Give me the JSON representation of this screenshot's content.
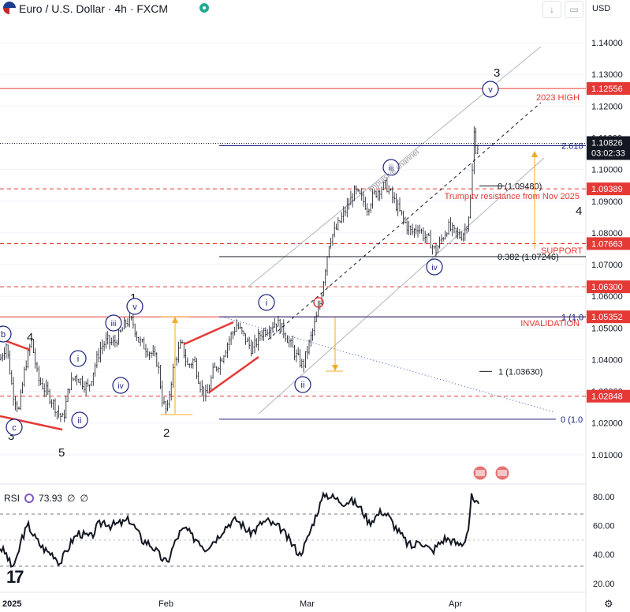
{
  "header": {
    "title": "Euro / U.S. Dollar · 4h · FXCM",
    "currency": "USD",
    "icons": [
      "eu-us-flag-icon",
      "market-open-dot-icon",
      "arrow-down-icon",
      "calendar-icon"
    ]
  },
  "chart_data": {
    "type": "candlestick",
    "symbol": "EURUSD",
    "timeframe": "4h",
    "y_ticks": [
      1.01,
      1.02,
      1.03,
      1.04,
      1.05,
      1.06,
      1.07,
      1.08,
      1.09,
      1.1,
      1.11,
      1.12,
      1.13,
      1.14
    ],
    "y_tick_labels": [
      "1.01000",
      "1.02000",
      "1.03000",
      "1.04000",
      "1.05000",
      "1.06000",
      "1.07000",
      "1.08000",
      "1.09000",
      "1.10000",
      "1.11000",
      "1.12000",
      "1.13000",
      "1.14000"
    ],
    "ylim": [
      1.001,
      1.148
    ],
    "x_labels": [
      "2025",
      "Feb",
      "Mar",
      "Apr"
    ],
    "price_path": [
      [
        0,
        1.04
      ],
      [
        8,
        1.045
      ],
      [
        16,
        1.03
      ],
      [
        24,
        1.024
      ],
      [
        32,
        1.038
      ],
      [
        40,
        1.046
      ],
      [
        48,
        1.034
      ],
      [
        56,
        1.031
      ],
      [
        64,
        1.028
      ],
      [
        72,
        1.024
      ],
      [
        80,
        1.021
      ],
      [
        88,
        1.032
      ],
      [
        96,
        1.035
      ],
      [
        104,
        1.033
      ],
      [
        112,
        1.031
      ],
      [
        120,
        1.038
      ],
      [
        128,
        1.044
      ],
      [
        136,
        1.046
      ],
      [
        144,
        1.045
      ],
      [
        152,
        1.048
      ],
      [
        160,
        1.052
      ],
      [
        168,
        1.052
      ],
      [
        176,
        1.046
      ],
      [
        184,
        1.044
      ],
      [
        192,
        1.042
      ],
      [
        200,
        1.039
      ],
      [
        206,
        1.027
      ],
      [
        212,
        1.023
      ],
      [
        216,
        1.032
      ],
      [
        222,
        1.04
      ],
      [
        230,
        1.045
      ],
      [
        238,
        1.038
      ],
      [
        246,
        1.04
      ],
      [
        254,
        1.032
      ],
      [
        262,
        1.028
      ],
      [
        270,
        1.036
      ],
      [
        280,
        1.04
      ],
      [
        290,
        1.046
      ],
      [
        300,
        1.051
      ],
      [
        310,
        1.047
      ],
      [
        320,
        1.043
      ],
      [
        330,
        1.048
      ],
      [
        340,
        1.05
      ],
      [
        350,
        1.052
      ],
      [
        360,
        1.049
      ],
      [
        368,
        1.045
      ],
      [
        376,
        1.041
      ],
      [
        384,
        1.038
      ],
      [
        392,
        1.045
      ],
      [
        400,
        1.052
      ],
      [
        406,
        1.058
      ],
      [
        412,
        1.068
      ],
      [
        418,
        1.078
      ],
      [
        426,
        1.081
      ],
      [
        434,
        1.085
      ],
      [
        442,
        1.089
      ],
      [
        450,
        1.093
      ],
      [
        458,
        1.091
      ],
      [
        466,
        1.088
      ],
      [
        474,
        1.092
      ],
      [
        482,
        1.094
      ],
      [
        490,
        1.095
      ],
      [
        498,
        1.091
      ],
      [
        506,
        1.087
      ],
      [
        514,
        1.083
      ],
      [
        522,
        1.08
      ],
      [
        530,
        1.082
      ],
      [
        538,
        1.079
      ],
      [
        546,
        1.077
      ],
      [
        552,
        1.074
      ],
      [
        560,
        1.078
      ],
      [
        568,
        1.082
      ],
      [
        576,
        1.08
      ],
      [
        584,
        1.079
      ],
      [
        590,
        1.081
      ],
      [
        594,
        1.085
      ],
      [
        598,
        1.093
      ],
      [
        601,
        1.112
      ],
      [
        604,
        1.106
      ],
      [
        607,
        1.108
      ]
    ],
    "price_lines": [
      {
        "value": 1.12556,
        "label": "1.12556",
        "color": "#e53935",
        "style": "solid"
      },
      {
        "value": 1.09389,
        "label": "1.09389",
        "color": "#e53935",
        "style": "dashed"
      },
      {
        "value": 1.07663,
        "label": "1.07663",
        "color": "#e53935",
        "style": "dashed"
      },
      {
        "value": 1.063,
        "label": "1.06300",
        "color": "#e53935",
        "style": "dashed"
      },
      {
        "value": 1.05352,
        "label": "1.05352",
        "color": "#e53935",
        "style": "solid"
      },
      {
        "value": 1.02848,
        "label": "1.02848",
        "color": "#e53935",
        "style": "dashed"
      }
    ],
    "current_price": {
      "value": 1.10826,
      "label": "1.10826",
      "countdown": "03:02:33"
    },
    "fib_levels": [
      {
        "label": "2.618",
        "value": 1.1075
      },
      {
        "label": "0 (1.09480)",
        "value": 1.0948
      },
      {
        "label": "0.382 (1.07246)",
        "value": 1.0725
      },
      {
        "label": "1 (1.0",
        "value": 1.0535
      },
      {
        "label": "1 (1.03630)",
        "value": 1.0363
      },
      {
        "label": "0 (1.0",
        "value": 1.0212
      }
    ],
    "annotations": [
      {
        "text": "2023 HIGH",
        "color": "#e53935"
      },
      {
        "text": "Trump tv resistance from Nov 2025",
        "color": "#e53935"
      },
      {
        "text": "SUPPORT",
        "color": "#e53935"
      },
      {
        "text": "INVALIDATION",
        "color": "#e53935"
      },
      {
        "text": "Impulsive channel",
        "color": "#9598a1"
      }
    ],
    "wave_labels": {
      "plain": [
        "3",
        "4",
        "5",
        "1",
        "2",
        "3",
        "4"
      ],
      "circled": [
        "b",
        "c",
        "i",
        "ii",
        "iii",
        "iv",
        "v",
        "i",
        "ii",
        "iii",
        "iv",
        "v"
      ]
    }
  },
  "rsi": {
    "label": "RSI",
    "value": "73.93",
    "extras": [
      "∅",
      "∅"
    ],
    "y_ticks": [
      "80.00",
      "60.00",
      "40.00",
      "20.00"
    ],
    "ylim": [
      15,
      87
    ],
    "series": [
      [
        0,
        45
      ],
      [
        8,
        40
      ],
      [
        14,
        32
      ],
      [
        20,
        34
      ],
      [
        28,
        52
      ],
      [
        36,
        60
      ],
      [
        44,
        52
      ],
      [
        52,
        46
      ],
      [
        60,
        42
      ],
      [
        68,
        40
      ],
      [
        76,
        34
      ],
      [
        84,
        42
      ],
      [
        92,
        50
      ],
      [
        100,
        55
      ],
      [
        108,
        53
      ],
      [
        116,
        52
      ],
      [
        124,
        60
      ],
      [
        132,
        63
      ],
      [
        140,
        60
      ],
      [
        148,
        61
      ],
      [
        156,
        62
      ],
      [
        164,
        64
      ],
      [
        172,
        58
      ],
      [
        180,
        50
      ],
      [
        188,
        48
      ],
      [
        196,
        44
      ],
      [
        204,
        38
      ],
      [
        212,
        34
      ],
      [
        220,
        46
      ],
      [
        228,
        55
      ],
      [
        236,
        58
      ],
      [
        244,
        52
      ],
      [
        252,
        50
      ],
      [
        260,
        44
      ],
      [
        268,
        48
      ],
      [
        276,
        52
      ],
      [
        284,
        58
      ],
      [
        292,
        62
      ],
      [
        300,
        64
      ],
      [
        308,
        60
      ],
      [
        316,
        55
      ],
      [
        324,
        57
      ],
      [
        332,
        62
      ],
      [
        340,
        63
      ],
      [
        348,
        60
      ],
      [
        356,
        58
      ],
      [
        364,
        52
      ],
      [
        372,
        46
      ],
      [
        380,
        40
      ],
      [
        388,
        48
      ],
      [
        396,
        60
      ],
      [
        404,
        72
      ],
      [
        412,
        82
      ],
      [
        420,
        80
      ],
      [
        428,
        78
      ],
      [
        436,
        76
      ],
      [
        444,
        77
      ],
      [
        452,
        75
      ],
      [
        460,
        70
      ],
      [
        468,
        62
      ],
      [
        476,
        66
      ],
      [
        484,
        70
      ],
      [
        492,
        67
      ],
      [
        500,
        60
      ],
      [
        508,
        54
      ],
      [
        516,
        48
      ],
      [
        524,
        45
      ],
      [
        532,
        50
      ],
      [
        540,
        46
      ],
      [
        548,
        42
      ],
      [
        556,
        47
      ],
      [
        564,
        51
      ],
      [
        572,
        50
      ],
      [
        580,
        47
      ],
      [
        588,
        48
      ],
      [
        594,
        58
      ],
      [
        598,
        80
      ],
      [
        602,
        74
      ],
      [
        607,
        75
      ]
    ]
  },
  "time_labels": [
    "2025",
    "Feb",
    "Mar",
    "Apr"
  ],
  "colors": {
    "accent": "#2962ff",
    "wave": "#1a237e",
    "red": "#e53935",
    "orange": "#f9a825",
    "rsi": "#131722"
  }
}
